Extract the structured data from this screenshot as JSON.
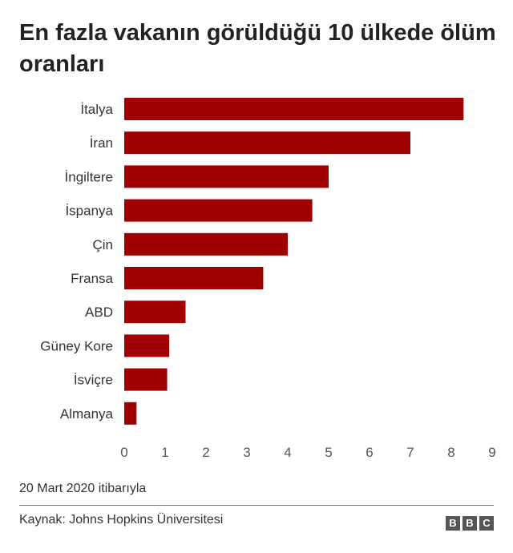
{
  "chart_data": {
    "type": "bar",
    "orientation": "horizontal",
    "title": "En fazla vakanın görüldüğü 10 ülkede ölüm oranları",
    "categories": [
      "İtalya",
      "İran",
      "İngiltere",
      "İspanya",
      "Çin",
      "Fransa",
      "ABD",
      "Güney Kore",
      "İsviçre",
      "Almanya"
    ],
    "values": [
      8.3,
      7.0,
      5.0,
      4.6,
      4.0,
      3.4,
      1.5,
      1.1,
      1.05,
      0.3
    ],
    "xlim": [
      0,
      9
    ],
    "xticks": [
      "0",
      "1",
      "2",
      "3",
      "4",
      "5",
      "6",
      "7",
      "8",
      "9"
    ],
    "grid": false,
    "bar_color": "#a00000"
  },
  "footer": {
    "note": "20 Mart 2020 itibarıyla",
    "source": "Kaynak: Johns Hopkins Üniversitesi",
    "logo_letters": [
      "B",
      "B",
      "C"
    ]
  }
}
